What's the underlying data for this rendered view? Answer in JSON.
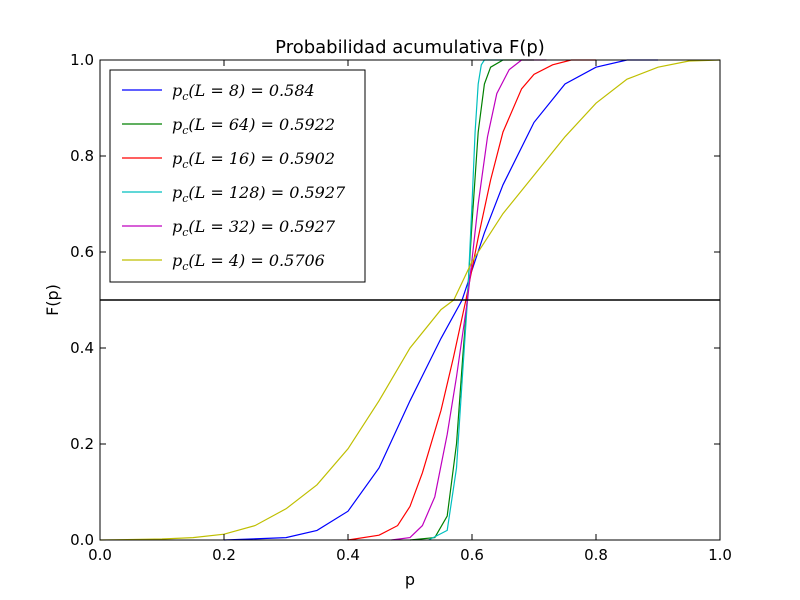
{
  "chart_data": {
    "type": "line",
    "title": "Probabilidad acumulativa F(p)",
    "xlabel": "p",
    "ylabel": "F(p)",
    "xlim": [
      0.0,
      1.0
    ],
    "ylim": [
      0.0,
      1.0
    ],
    "xticks": [
      "0.0",
      "0.2",
      "0.4",
      "0.6",
      "0.8",
      "1.0"
    ],
    "yticks": [
      "0.0",
      "0.2",
      "0.4",
      "0.6",
      "0.8",
      "1.0"
    ],
    "grid": false,
    "legend_position": "top-left",
    "hline": {
      "y": 0.5,
      "color": "#000000"
    },
    "series": [
      {
        "name": "p_c(L=8) = 0.584",
        "color": "#0000ff",
        "x": [
          0.2,
          0.3,
          0.35,
          0.4,
          0.45,
          0.5,
          0.55,
          0.584,
          0.62,
          0.65,
          0.7,
          0.75,
          0.8,
          0.85,
          0.9
        ],
        "y": [
          0.0,
          0.005,
          0.02,
          0.06,
          0.15,
          0.29,
          0.42,
          0.5,
          0.64,
          0.74,
          0.87,
          0.95,
          0.985,
          1.0,
          1.0
        ]
      },
      {
        "name": "p_c(L=64) = 0.5922",
        "color": "#008000",
        "x": [
          0.5,
          0.54,
          0.56,
          0.575,
          0.585,
          0.5922,
          0.6,
          0.61,
          0.62,
          0.63,
          0.65,
          0.7
        ],
        "y": [
          0.0,
          0.005,
          0.05,
          0.2,
          0.38,
          0.5,
          0.66,
          0.85,
          0.95,
          0.985,
          1.0,
          1.0
        ]
      },
      {
        "name": "p_c(L=16) = 0.5902",
        "color": "#ff0000",
        "x": [
          0.4,
          0.45,
          0.48,
          0.5,
          0.52,
          0.55,
          0.57,
          0.5902,
          0.61,
          0.63,
          0.65,
          0.68,
          0.7,
          0.73,
          0.76,
          0.8
        ],
        "y": [
          0.0,
          0.01,
          0.03,
          0.07,
          0.14,
          0.27,
          0.38,
          0.5,
          0.63,
          0.75,
          0.85,
          0.94,
          0.97,
          0.99,
          1.0,
          1.0
        ]
      },
      {
        "name": "p_c(L=128) = 0.5927",
        "color": "#00bfbf",
        "x": [
          0.53,
          0.56,
          0.575,
          0.585,
          0.5927,
          0.6,
          0.605,
          0.61,
          0.615,
          0.62,
          0.65
        ],
        "y": [
          0.0,
          0.02,
          0.15,
          0.35,
          0.5,
          0.7,
          0.85,
          0.95,
          0.99,
          1.0,
          1.0
        ]
      },
      {
        "name": "p_c(L=32) = 0.5927",
        "color": "#bf00bf",
        "x": [
          0.47,
          0.5,
          0.52,
          0.54,
          0.56,
          0.575,
          0.5927,
          0.61,
          0.625,
          0.64,
          0.66,
          0.68,
          0.72
        ],
        "y": [
          0.0,
          0.005,
          0.03,
          0.09,
          0.22,
          0.34,
          0.5,
          0.7,
          0.84,
          0.93,
          0.98,
          1.0,
          1.0
        ]
      },
      {
        "name": "p_c(L=4) = 0.5706",
        "color": "#bfbf00",
        "x": [
          0.0,
          0.1,
          0.15,
          0.2,
          0.25,
          0.3,
          0.35,
          0.4,
          0.45,
          0.5,
          0.55,
          0.5706,
          0.6,
          0.65,
          0.7,
          0.75,
          0.8,
          0.85,
          0.9,
          0.95,
          1.0
        ],
        "y": [
          0.0,
          0.002,
          0.005,
          0.012,
          0.03,
          0.065,
          0.115,
          0.19,
          0.29,
          0.4,
          0.48,
          0.5,
          0.58,
          0.68,
          0.76,
          0.84,
          0.91,
          0.96,
          0.985,
          0.998,
          1.0
        ]
      }
    ],
    "legend_labels": [
      [
        "p",
        "c",
        "(L = 8) = 0.584"
      ],
      [
        "p",
        "c",
        "(L = 64) = 0.5922"
      ],
      [
        "p",
        "c",
        "(L = 16) = 0.5902"
      ],
      [
        "p",
        "c",
        "(L = 128) = 0.5927"
      ],
      [
        "p",
        "c",
        "(L = 32) = 0.5927"
      ],
      [
        "p",
        "c",
        "(L = 4) = 0.5706"
      ]
    ]
  }
}
